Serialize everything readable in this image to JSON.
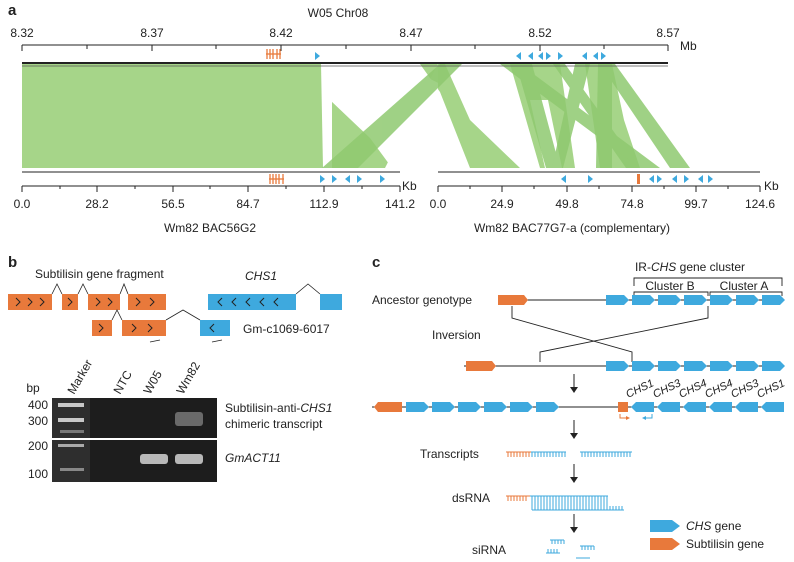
{
  "colors": {
    "green": "#a6d589",
    "green_dark": "#8fc970",
    "orange": "#e8793b",
    "blue": "#3ea9de",
    "gel_bg": "#1d1d1d"
  },
  "panel_a": {
    "label": "a",
    "top_title": "W05 Chr08",
    "top_ticks": [
      "8.32",
      "8.37",
      "8.42",
      "8.47",
      "8.52",
      "8.57"
    ],
    "top_unit": "Mb",
    "bottom_unit_left": "Kb",
    "bottom_unit_right": "Kb",
    "left_ticks": [
      "0.0",
      "28.2",
      "56.5",
      "84.7",
      "112.9",
      "141.2"
    ],
    "right_ticks": [
      "0.0",
      "24.9",
      "49.8",
      "74.8",
      "99.7",
      "124.6"
    ],
    "left_title": "Wm82 BAC56G2",
    "right_title": "Wm82 BAC77G7-a (complementary)"
  },
  "panel_b": {
    "label": "b",
    "fragment_label": "Subtilisin gene fragment",
    "chs1_label": "CHS1",
    "clone_label": "Gm-c1069-6017",
    "bp_label": "bp",
    "lanes": [
      "Marker",
      "NTC",
      "W05",
      "Wm82"
    ],
    "gel1_ticks": [
      "400",
      "300"
    ],
    "gel2_ticks": [
      "200",
      "100"
    ],
    "gel1_label_1": "Subtilisin-anti-",
    "gel1_label_1b": "CHS1",
    "gel1_label_2": "chimeric transcript",
    "gel2_label": "GmACT11"
  },
  "panel_c": {
    "label": "c",
    "cluster_title_pre": "IR-",
    "cluster_title_it": "CHS",
    "cluster_title_post": " gene cluster",
    "cluster_b": "Cluster B",
    "cluster_a": "Cluster A",
    "ancestor": "Ancestor genotype",
    "inversion": "Inversion",
    "gene_names": [
      "CHS1",
      "CHS3",
      "CHS4",
      "CHS4",
      "CHS3",
      "CHS1"
    ],
    "transcripts": "Transcripts",
    "dsrna": "dsRNA",
    "sirna": "siRNA",
    "legend_chs_it": "CHS",
    "legend_chs_post": " gene",
    "legend_subtilisin": "Subtilisin gene"
  }
}
